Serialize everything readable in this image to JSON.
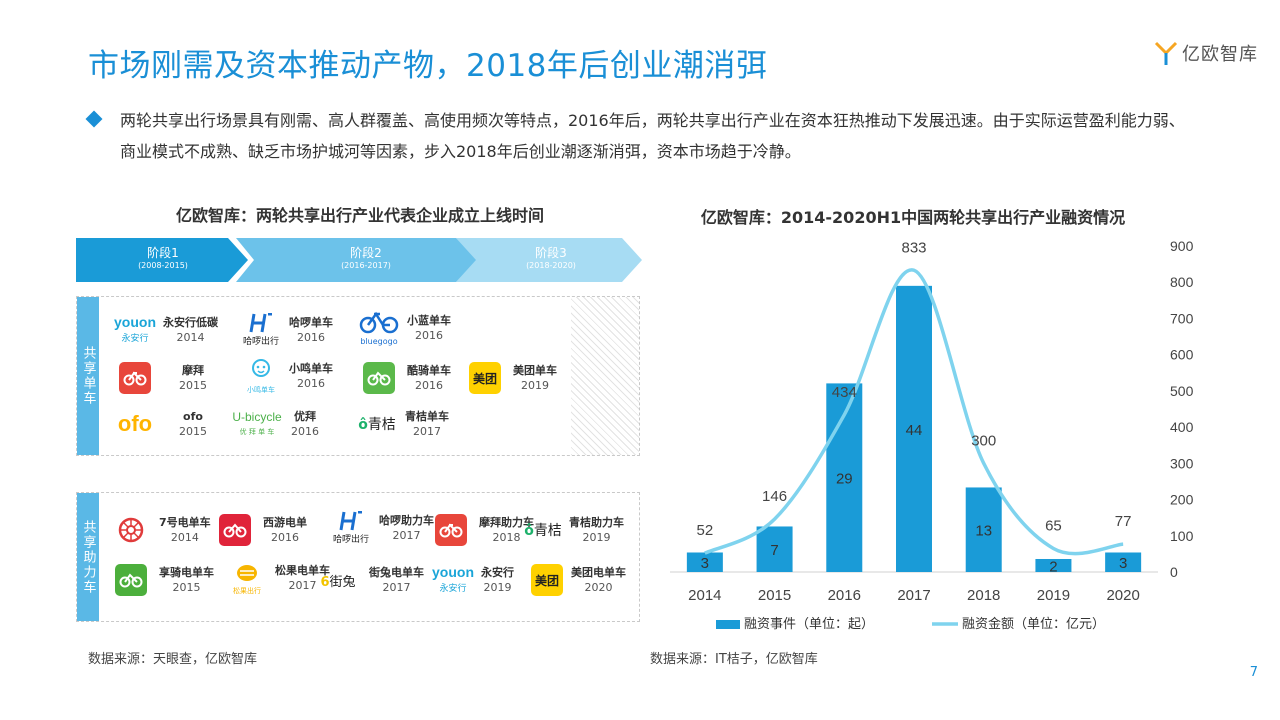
{
  "slide": {
    "title": "市场刚需及资本推动产物，2018年后创业潮消弭",
    "brand": "亿欧智库",
    "bullet": "两轮共享出行场景具有刚需、高人群覆盖、高使用频次等特点，2016年后，两轮共享出行产业在资本狂热推动下发展迅速。由于实际运营盈利能力弱、商业模式不成熟、缺乏市场护城河等因素，步入2018年后创业潮逐渐消弭，资本市场趋于冷静。",
    "page_number": "7"
  },
  "left": {
    "title": "亿欧智库：两轮共享出行产业代表企业成立上线时间",
    "stages": [
      {
        "label": "阶段1",
        "range": "(2008-2015)",
        "color": "#1a9bd7"
      },
      {
        "label": "阶段2",
        "range": "(2016-2017)",
        "color": "#6cc2ea"
      },
      {
        "label": "阶段3",
        "range": "(2018-2020)",
        "color": "#a7dcf3"
      }
    ],
    "bike_label": "共享单车",
    "moped_label": "共享助力车",
    "bikes": [
      {
        "name": "永安行低碳",
        "year": "2014",
        "logo": "youon"
      },
      {
        "name": "哈啰单车",
        "year": "2016",
        "logo": "hellobike"
      },
      {
        "name": "小蓝单车",
        "year": "2016",
        "logo": "bluegogo"
      },
      {
        "name": "摩拜",
        "year": "2015",
        "logo": "mobike"
      },
      {
        "name": "小鸣单车",
        "year": "2016",
        "logo": "mingbike"
      },
      {
        "name": "酷骑单车",
        "year": "2016",
        "logo": "coolqi"
      },
      {
        "name": "美团单车",
        "year": "2019",
        "logo": "meituan"
      },
      {
        "name": "ofo",
        "year": "2015",
        "logo": "ofo"
      },
      {
        "name": "优拜",
        "year": "2016",
        "logo": "ubicycle"
      },
      {
        "name": "青桔单车",
        "year": "2017",
        "logo": "qingju"
      }
    ],
    "mopeds": [
      {
        "name": "7号电单车",
        "year": "2014",
        "logo": "no7"
      },
      {
        "name": "西游电单",
        "year": "2016",
        "logo": "xiyou"
      },
      {
        "name": "哈啰助力车",
        "year": "2017",
        "logo": "hellobike"
      },
      {
        "name": "摩拜助力车",
        "year": "2018",
        "logo": "mobike"
      },
      {
        "name": "青桔助力车",
        "year": "2019",
        "logo": "qingju"
      },
      {
        "name": "享骑电单车",
        "year": "2015",
        "logo": "xiangqi"
      },
      {
        "name": "松果电单车",
        "year": "2017",
        "logo": "songguo"
      },
      {
        "name": "街兔电单车",
        "year": "2017",
        "logo": "jietu"
      },
      {
        "name": "永安行",
        "year": "2019",
        "logo": "youon"
      },
      {
        "name": "美团电单车",
        "year": "2020",
        "logo": "meituan"
      }
    ],
    "logo_text": {
      "youon": "youon",
      "youon_sub": "永安行",
      "hellobike_sub": "哈啰出行",
      "bluegogo_sub": "bluegogo",
      "mingbike_sub": "小鸣单车",
      "meituan": "美团",
      "ofo": "ofo",
      "ubicycle": "U-bicycle",
      "ubicycle_sub": "优 拜 单 车",
      "qingju": "青桔",
      "songguo_sub": "松果出行",
      "jietu": "街兔"
    },
    "source": "数据来源：天眼查，亿欧智库"
  },
  "right": {
    "title": "亿欧智库：2014-2020H1中国两轮共享出行产业融资情况",
    "source": "数据来源：IT桔子，亿欧智库"
  },
  "chart_data": {
    "type": "bar",
    "title": "亿欧智库：2014-2020H1中国两轮共享出行产业融资情况",
    "categories": [
      "2014",
      "2015",
      "2016",
      "2017",
      "2018",
      "2019",
      "2020"
    ],
    "series": [
      {
        "name": "融资事件（单位：起）",
        "type": "bar",
        "values": [
          3,
          7,
          29,
          44,
          13,
          2,
          3
        ],
        "color": "#1a9bd7"
      },
      {
        "name": "融资金额（单位：亿元）",
        "type": "line",
        "values": [
          52,
          146,
          434,
          833,
          300,
          65,
          77
        ],
        "color": "#7fd3ee"
      }
    ],
    "axis": {
      "ylim": [
        0,
        900
      ],
      "ticks": [
        0,
        100,
        200,
        300,
        400,
        500,
        600,
        700,
        800,
        900
      ],
      "position": "right"
    },
    "legend": "bottom"
  }
}
